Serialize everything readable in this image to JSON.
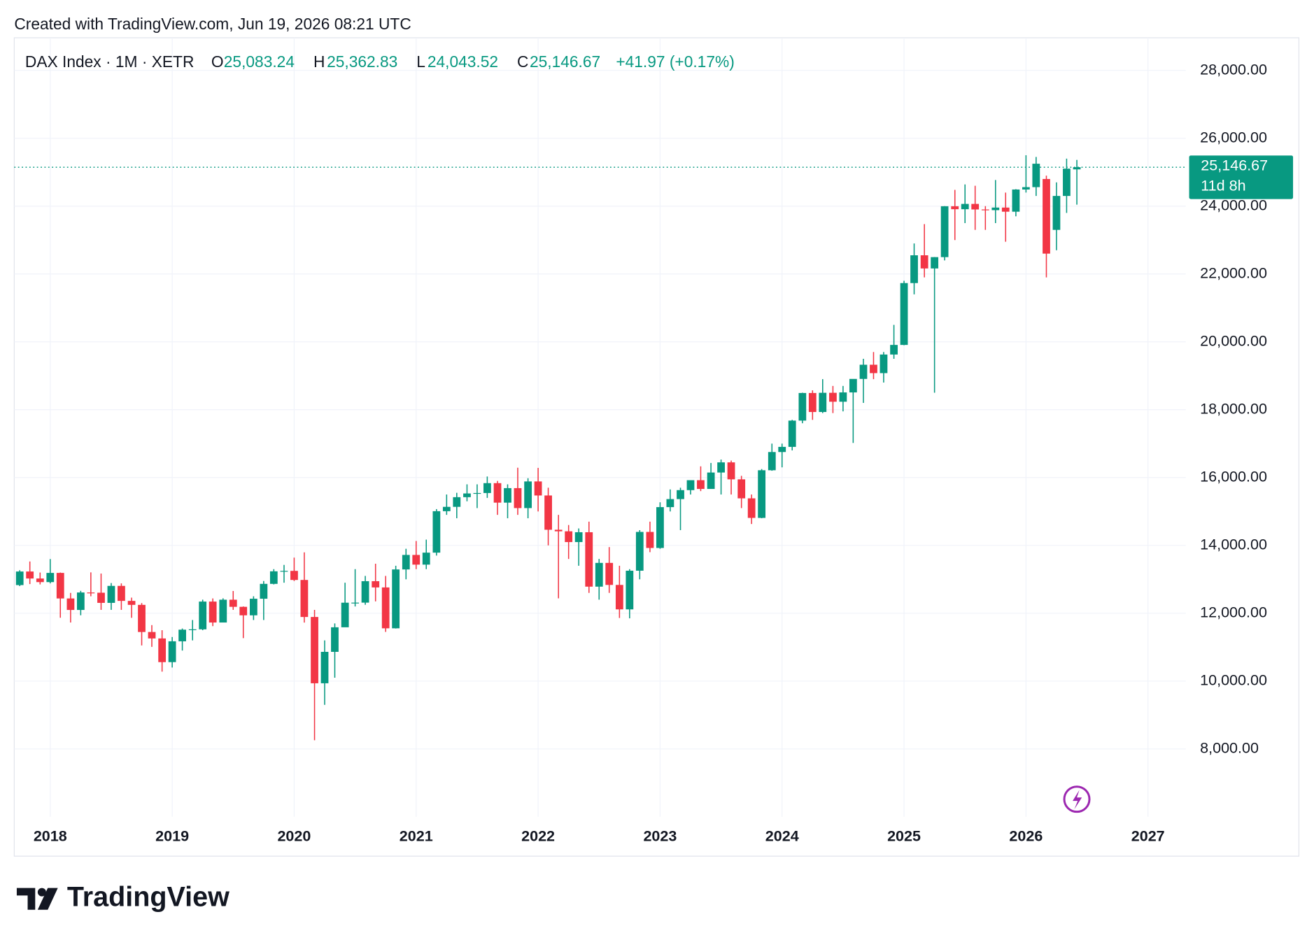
{
  "header": {
    "created": "Created with TradingView.com, Jun 19, 2026 08:21 UTC"
  },
  "legend": {
    "symbol": "DAX Index · 1M · XETR",
    "fields": [
      {
        "label": "O",
        "value": "25,083.24"
      },
      {
        "label": "H",
        "value": "25,362.83"
      },
      {
        "label": "L",
        "value": "24,043.52"
      },
      {
        "label": "C",
        "value": "25,146.67"
      }
    ],
    "change": "+41.97 (+0.17%)"
  },
  "footer": {
    "brand": "TradingView"
  },
  "chart_data": {
    "type": "candlestick",
    "up_color": "#089981",
    "down_color": "#f23645",
    "grid": true,
    "xlim": [
      2017.705,
      2027.31
    ],
    "xticks": [
      2018,
      2019,
      2020,
      2021,
      2022,
      2023,
      2024,
      2025,
      2026,
      2027
    ],
    "ylim": [
      6000,
      28963
    ],
    "yticks": [
      {
        "value": 8000,
        "label": "8,000.00"
      },
      {
        "value": 10000,
        "label": "10,000.00"
      },
      {
        "value": 12000,
        "label": "12,000.00"
      },
      {
        "value": 14000,
        "label": "14,000.00"
      },
      {
        "value": 16000,
        "label": "16,000.00"
      },
      {
        "value": 18000,
        "label": "18,000.00"
      },
      {
        "value": 20000,
        "label": "20,000.00"
      },
      {
        "value": 22000,
        "label": "22,000.00"
      },
      {
        "value": 24000,
        "label": "24,000.00"
      },
      {
        "value": 26000,
        "label": "26,000.00"
      },
      {
        "value": 28000,
        "label": "28,000.00"
      }
    ],
    "last_price": {
      "value": 25146.67,
      "label": "25,146.67"
    },
    "countdown": "11d 8h",
    "x": [
      2017.75,
      2017.833,
      2017.917,
      2018,
      2018.083,
      2018.167,
      2018.25,
      2018.333,
      2018.417,
      2018.5,
      2018.583,
      2018.667,
      2018.75,
      2018.833,
      2018.917,
      2019,
      2019.083,
      2019.167,
      2019.25,
      2019.333,
      2019.417,
      2019.5,
      2019.583,
      2019.667,
      2019.75,
      2019.833,
      2019.917,
      2020,
      2020.083,
      2020.167,
      2020.25,
      2020.333,
      2020.417,
      2020.5,
      2020.583,
      2020.667,
      2020.75,
      2020.833,
      2020.917,
      2021,
      2021.083,
      2021.167,
      2021.25,
      2021.333,
      2021.417,
      2021.5,
      2021.583,
      2021.667,
      2021.75,
      2021.833,
      2021.917,
      2022,
      2022.083,
      2022.167,
      2022.25,
      2022.333,
      2022.417,
      2022.5,
      2022.583,
      2022.667,
      2022.75,
      2022.833,
      2022.917,
      2023,
      2023.083,
      2023.167,
      2023.25,
      2023.333,
      2023.417,
      2023.5,
      2023.583,
      2023.667,
      2023.75,
      2023.833,
      2023.917,
      2024,
      2024.083,
      2024.167,
      2024.25,
      2024.333,
      2024.417,
      2024.5,
      2024.583,
      2024.667,
      2024.75,
      2024.833,
      2024.917,
      2025,
      2025.083,
      2025.167,
      2025.25,
      2025.333,
      2025.417,
      2025.5,
      2025.583,
      2025.667,
      2025.75,
      2025.833,
      2025.917,
      2026,
      2026.083,
      2026.167,
      2026.25,
      2026.333,
      2026.417
    ],
    "open": [
      12830,
      13230,
      13024,
      12918,
      13189,
      12436,
      12097,
      12612,
      12605,
      12306,
      12806,
      12364,
      12247,
      11447,
      11257,
      10559,
      11173,
      11516,
      11526,
      12344,
      11727,
      12399,
      12189,
      11939,
      12428,
      12866,
      13236,
      13249,
      12981,
      11890,
      9936,
      10862,
      11586,
      12311,
      12313,
      12945,
      12761,
      11556,
      13291,
      13719,
      13433,
      13786,
      15008,
      15136,
      15421,
      15531,
      15544,
      15835,
      15260,
      15688,
      15100,
      15885,
      15471,
      14461,
      14415,
      14098,
      14388,
      12784,
      13484,
      12835,
      12114,
      13254,
      14397,
      13924,
      15128,
      15365,
      15629,
      15922,
      15664,
      16148,
      16447,
      15947,
      15387,
      14810,
      16215,
      16752,
      16904,
      17678,
      18492,
      17932,
      18498,
      18235,
      18509,
      18907,
      19325,
      19078,
      19626,
      19909,
      21732,
      22551,
      22163,
      22497,
      23997,
      23909,
      24065,
      23902,
      23881,
      23958,
      23836,
      24490,
      24560,
      24800,
      23300,
      24300,
      25083.24
    ],
    "high": [
      13268,
      13526,
      13200,
      13597,
      13200,
      12600,
      12660,
      13205,
      13170,
      12890,
      12880,
      12460,
      12300,
      11650,
      11500,
      11300,
      11550,
      11800,
      12400,
      12437,
      12440,
      12656,
      12200,
      12500,
      12950,
      13300,
      13425,
      13640,
      13795,
      12100,
      11200,
      11700,
      12900,
      13300,
      13100,
      13460,
      13100,
      13400,
      13900,
      14130,
      14170,
      15070,
      15500,
      15550,
      15800,
      15800,
      16030,
      15900,
      15800,
      16290,
      15980,
      16285,
      15700,
      14900,
      14600,
      14500,
      14700,
      13600,
      13950,
      13400,
      13300,
      14450,
      14700,
      15270,
      15650,
      15700,
      15900,
      16330,
      16430,
      16530,
      16500,
      16050,
      15500,
      16250,
      17000,
      17000,
      17700,
      18500,
      18570,
      18900,
      18700,
      18700,
      18900,
      19500,
      19700,
      19700,
      20500,
      21800,
      22900,
      23470,
      22500,
      24000,
      24480,
      24640,
      24600,
      24000,
      24770,
      24400,
      24500,
      25500,
      25450,
      24900,
      24700,
      25400,
      25362.83
    ],
    "low": [
      12800,
      12860,
      12850,
      12880,
      11868,
      11727,
      11940,
      12500,
      12100,
      12100,
      12100,
      11865,
      11051,
      11009,
      10279,
      10400,
      10900,
      11200,
      11500,
      11620,
      11800,
      12100,
      11266,
      11800,
      11800,
      12850,
      12900,
      12950,
      11725,
      8256,
      9300,
      10100,
      11600,
      12200,
      12250,
      12350,
      11450,
      11550,
      13000,
      13300,
      13300,
      13700,
      14900,
      14800,
      15300,
      15100,
      15400,
      14900,
      14800,
      14900,
      14800,
      15000,
      14000,
      12439,
      13600,
      13400,
      12600,
      12400,
      12600,
      11860,
      11850,
      13000,
      13800,
      13900,
      15000,
      14450,
      15500,
      15600,
      15700,
      15500,
      15500,
      15100,
      14630,
      14800,
      16200,
      16300,
      16800,
      17600,
      17700,
      17900,
      17900,
      17950,
      17020,
      18200,
      18900,
      18800,
      19500,
      19900,
      21400,
      21900,
      18500,
      22400,
      23000,
      23500,
      23300,
      23300,
      23500,
      22950,
      23700,
      24400,
      24300,
      21900,
      22700,
      23800,
      24043.52
    ],
    "close": [
      13230,
      13024,
      12918,
      13189,
      12436,
      12097,
      12612,
      12605,
      12306,
      12806,
      12364,
      12247,
      11447,
      11257,
      10559,
      11173,
      11516,
      11526,
      12344,
      11727,
      12399,
      12189,
      11939,
      12428,
      12866,
      13236,
      13249,
      12981,
      11890,
      9936,
      10862,
      11586,
      12311,
      12313,
      12945,
      12761,
      11556,
      13291,
      13719,
      13433,
      13786,
      15008,
      15136,
      15421,
      15531,
      15544,
      15835,
      15260,
      15688,
      15100,
      15885,
      15471,
      14461,
      14415,
      14098,
      14388,
      12784,
      13484,
      12835,
      12114,
      13254,
      14397,
      13924,
      15128,
      15365,
      15629,
      15922,
      15664,
      16148,
      16447,
      15947,
      15387,
      14810,
      16215,
      16752,
      16904,
      17678,
      18492,
      17932,
      18498,
      18235,
      18509,
      18907,
      19325,
      19078,
      19626,
      19909,
      21732,
      22551,
      22163,
      22497,
      23997,
      23909,
      24065,
      23902,
      23881,
      23958,
      23836,
      24490,
      24560,
      25250,
      22600,
      24300,
      25104.7,
      25146.67
    ]
  }
}
